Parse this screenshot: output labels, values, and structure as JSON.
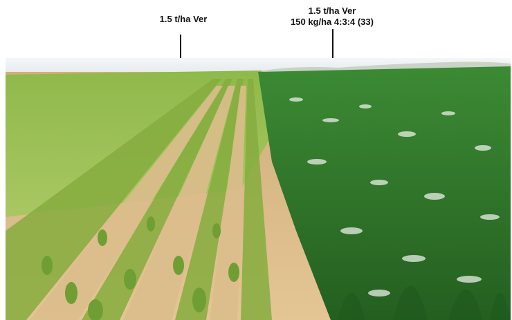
{
  "annotations": {
    "left": {
      "line1": "1.5 t/ha Ver"
    },
    "right": {
      "line1": "1.5 t/ha Ver",
      "line2": "150 kg/ha 4:3:4 (33)"
    }
  },
  "colors": {
    "sky": "#eef1f4",
    "soil": "#d9b98a",
    "pale_crop": "#9cc24f",
    "dark_crop": "#2f7a2a",
    "leaf_highlight": "#e8efe6"
  }
}
